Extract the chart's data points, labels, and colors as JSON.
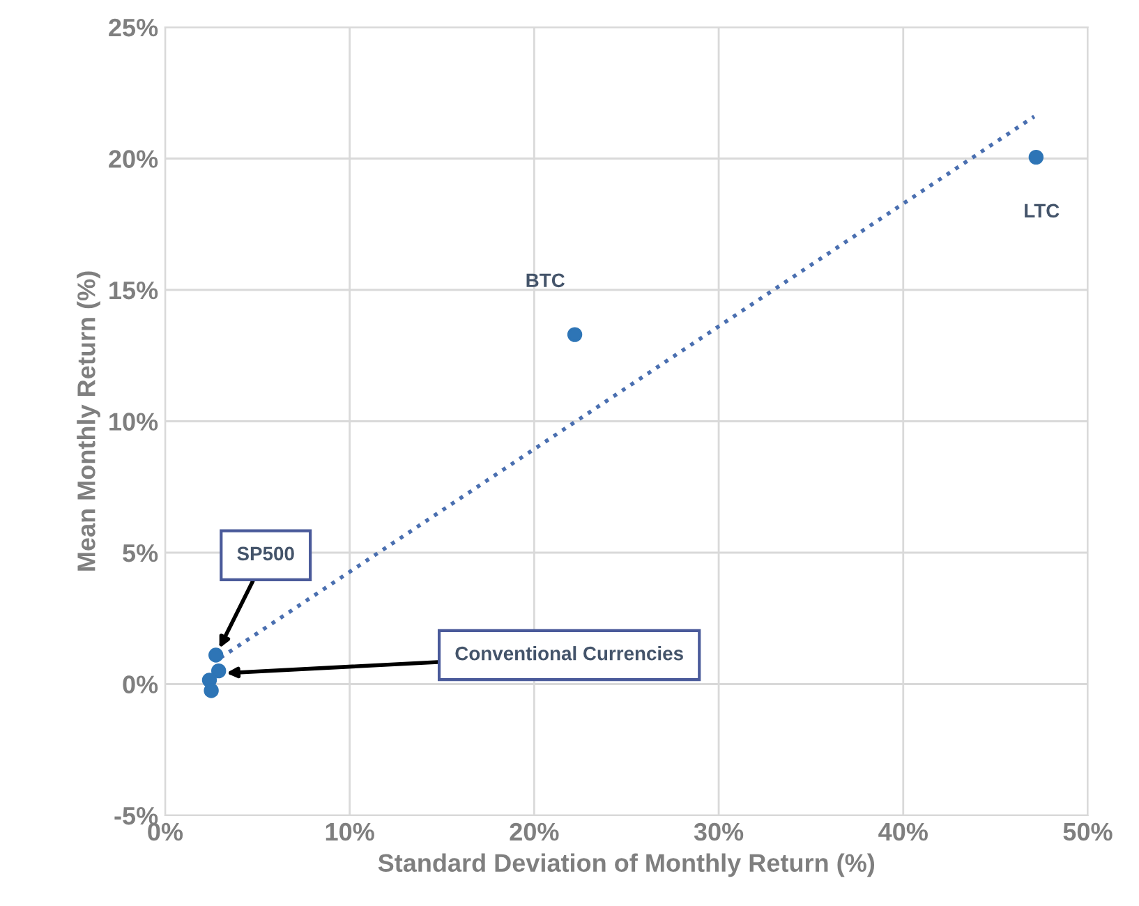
{
  "chart_data": {
    "type": "scatter",
    "xlabel": "Standard Deviation of Monthly Return (%)",
    "ylabel": "Mean Monthly Return (%)",
    "series": [
      {
        "color": "#2e75b6",
        "x": [
          47.2,
          22.2,
          2.75,
          2.9,
          2.4,
          2.5
        ],
        "values": [
          20.05,
          13.3,
          1.1,
          0.5,
          0.15,
          -0.25
        ],
        "marker": "circle"
      },
      {
        "type": "line",
        "color": "#4a6fb0",
        "x": [
          3.0,
          47.1
        ],
        "values": [
          1.0,
          21.6
        ],
        "line_style": "dotted",
        "marker": "none"
      }
    ],
    "annotations": [
      {
        "text": "LTC",
        "x": 47.2,
        "y": 20.05
      },
      {
        "text": "BTC",
        "x": 22.2,
        "y": 13.3
      },
      {
        "text": "SP500",
        "x": 2.75,
        "y": 1.1
      },
      {
        "text": "Conventional Currencies",
        "x": 2.9,
        "y": 0.4
      }
    ],
    "xlim": [
      0,
      50
    ],
    "xticks": [
      {
        "value": 0,
        "label": "0%"
      },
      {
        "value": 10,
        "label": "10%"
      },
      {
        "value": 20,
        "label": "20%"
      },
      {
        "value": 30,
        "label": "30%"
      },
      {
        "value": 40,
        "label": "40%"
      },
      {
        "value": 50,
        "label": "50%"
      }
    ],
    "ylim": [
      -5,
      25
    ],
    "yticks": [
      {
        "value": -5,
        "label": "-5%"
      },
      {
        "value": 0,
        "label": "0%"
      },
      {
        "value": 5,
        "label": "5%"
      },
      {
        "value": 10,
        "label": "10%"
      },
      {
        "value": 15,
        "label": "15%"
      },
      {
        "value": 20,
        "label": "20%"
      },
      {
        "value": 25,
        "label": "25%"
      }
    ],
    "grid": true
  }
}
